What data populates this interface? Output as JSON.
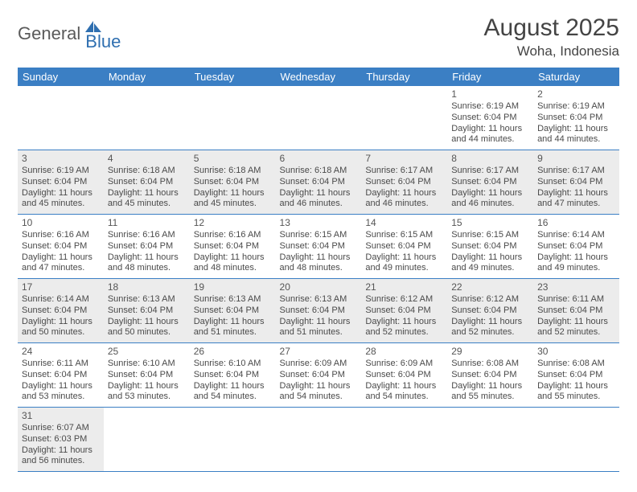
{
  "logo": {
    "general": "General",
    "blue": "Blue"
  },
  "title": "August 2025",
  "location": "Woha, Indonesia",
  "header_color": "#3b7fc4",
  "alt_row_color": "#ececec",
  "day_headers": [
    "Sunday",
    "Monday",
    "Tuesday",
    "Wednesday",
    "Thursday",
    "Friday",
    "Saturday"
  ],
  "weeks": [
    [
      null,
      null,
      null,
      null,
      null,
      {
        "n": "1",
        "sr": "Sunrise: 6:19 AM",
        "ss": "Sunset: 6:04 PM",
        "d1": "Daylight: 11 hours",
        "d2": "and 44 minutes."
      },
      {
        "n": "2",
        "sr": "Sunrise: 6:19 AM",
        "ss": "Sunset: 6:04 PM",
        "d1": "Daylight: 11 hours",
        "d2": "and 44 minutes."
      }
    ],
    [
      {
        "n": "3",
        "sr": "Sunrise: 6:19 AM",
        "ss": "Sunset: 6:04 PM",
        "d1": "Daylight: 11 hours",
        "d2": "and 45 minutes."
      },
      {
        "n": "4",
        "sr": "Sunrise: 6:18 AM",
        "ss": "Sunset: 6:04 PM",
        "d1": "Daylight: 11 hours",
        "d2": "and 45 minutes."
      },
      {
        "n": "5",
        "sr": "Sunrise: 6:18 AM",
        "ss": "Sunset: 6:04 PM",
        "d1": "Daylight: 11 hours",
        "d2": "and 45 minutes."
      },
      {
        "n": "6",
        "sr": "Sunrise: 6:18 AM",
        "ss": "Sunset: 6:04 PM",
        "d1": "Daylight: 11 hours",
        "d2": "and 46 minutes."
      },
      {
        "n": "7",
        "sr": "Sunrise: 6:17 AM",
        "ss": "Sunset: 6:04 PM",
        "d1": "Daylight: 11 hours",
        "d2": "and 46 minutes."
      },
      {
        "n": "8",
        "sr": "Sunrise: 6:17 AM",
        "ss": "Sunset: 6:04 PM",
        "d1": "Daylight: 11 hours",
        "d2": "and 46 minutes."
      },
      {
        "n": "9",
        "sr": "Sunrise: 6:17 AM",
        "ss": "Sunset: 6:04 PM",
        "d1": "Daylight: 11 hours",
        "d2": "and 47 minutes."
      }
    ],
    [
      {
        "n": "10",
        "sr": "Sunrise: 6:16 AM",
        "ss": "Sunset: 6:04 PM",
        "d1": "Daylight: 11 hours",
        "d2": "and 47 minutes."
      },
      {
        "n": "11",
        "sr": "Sunrise: 6:16 AM",
        "ss": "Sunset: 6:04 PM",
        "d1": "Daylight: 11 hours",
        "d2": "and 48 minutes."
      },
      {
        "n": "12",
        "sr": "Sunrise: 6:16 AM",
        "ss": "Sunset: 6:04 PM",
        "d1": "Daylight: 11 hours",
        "d2": "and 48 minutes."
      },
      {
        "n": "13",
        "sr": "Sunrise: 6:15 AM",
        "ss": "Sunset: 6:04 PM",
        "d1": "Daylight: 11 hours",
        "d2": "and 48 minutes."
      },
      {
        "n": "14",
        "sr": "Sunrise: 6:15 AM",
        "ss": "Sunset: 6:04 PM",
        "d1": "Daylight: 11 hours",
        "d2": "and 49 minutes."
      },
      {
        "n": "15",
        "sr": "Sunrise: 6:15 AM",
        "ss": "Sunset: 6:04 PM",
        "d1": "Daylight: 11 hours",
        "d2": "and 49 minutes."
      },
      {
        "n": "16",
        "sr": "Sunrise: 6:14 AM",
        "ss": "Sunset: 6:04 PM",
        "d1": "Daylight: 11 hours",
        "d2": "and 49 minutes."
      }
    ],
    [
      {
        "n": "17",
        "sr": "Sunrise: 6:14 AM",
        "ss": "Sunset: 6:04 PM",
        "d1": "Daylight: 11 hours",
        "d2": "and 50 minutes."
      },
      {
        "n": "18",
        "sr": "Sunrise: 6:13 AM",
        "ss": "Sunset: 6:04 PM",
        "d1": "Daylight: 11 hours",
        "d2": "and 50 minutes."
      },
      {
        "n": "19",
        "sr": "Sunrise: 6:13 AM",
        "ss": "Sunset: 6:04 PM",
        "d1": "Daylight: 11 hours",
        "d2": "and 51 minutes."
      },
      {
        "n": "20",
        "sr": "Sunrise: 6:13 AM",
        "ss": "Sunset: 6:04 PM",
        "d1": "Daylight: 11 hours",
        "d2": "and 51 minutes."
      },
      {
        "n": "21",
        "sr": "Sunrise: 6:12 AM",
        "ss": "Sunset: 6:04 PM",
        "d1": "Daylight: 11 hours",
        "d2": "and 52 minutes."
      },
      {
        "n": "22",
        "sr": "Sunrise: 6:12 AM",
        "ss": "Sunset: 6:04 PM",
        "d1": "Daylight: 11 hours",
        "d2": "and 52 minutes."
      },
      {
        "n": "23",
        "sr": "Sunrise: 6:11 AM",
        "ss": "Sunset: 6:04 PM",
        "d1": "Daylight: 11 hours",
        "d2": "and 52 minutes."
      }
    ],
    [
      {
        "n": "24",
        "sr": "Sunrise: 6:11 AM",
        "ss": "Sunset: 6:04 PM",
        "d1": "Daylight: 11 hours",
        "d2": "and 53 minutes."
      },
      {
        "n": "25",
        "sr": "Sunrise: 6:10 AM",
        "ss": "Sunset: 6:04 PM",
        "d1": "Daylight: 11 hours",
        "d2": "and 53 minutes."
      },
      {
        "n": "26",
        "sr": "Sunrise: 6:10 AM",
        "ss": "Sunset: 6:04 PM",
        "d1": "Daylight: 11 hours",
        "d2": "and 54 minutes."
      },
      {
        "n": "27",
        "sr": "Sunrise: 6:09 AM",
        "ss": "Sunset: 6:04 PM",
        "d1": "Daylight: 11 hours",
        "d2": "and 54 minutes."
      },
      {
        "n": "28",
        "sr": "Sunrise: 6:09 AM",
        "ss": "Sunset: 6:04 PM",
        "d1": "Daylight: 11 hours",
        "d2": "and 54 minutes."
      },
      {
        "n": "29",
        "sr": "Sunrise: 6:08 AM",
        "ss": "Sunset: 6:04 PM",
        "d1": "Daylight: 11 hours",
        "d2": "and 55 minutes."
      },
      {
        "n": "30",
        "sr": "Sunrise: 6:08 AM",
        "ss": "Sunset: 6:04 PM",
        "d1": "Daylight: 11 hours",
        "d2": "and 55 minutes."
      }
    ],
    [
      {
        "n": "31",
        "sr": "Sunrise: 6:07 AM",
        "ss": "Sunset: 6:03 PM",
        "d1": "Daylight: 11 hours",
        "d2": "and 56 minutes."
      },
      null,
      null,
      null,
      null,
      null,
      null
    ]
  ]
}
